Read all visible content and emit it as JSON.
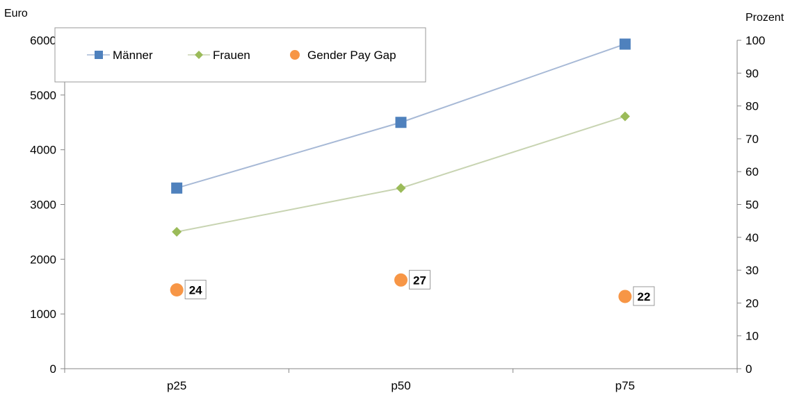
{
  "chart_data": {
    "type": "line",
    "categories": [
      "p25",
      "p50",
      "p75"
    ],
    "y_left": {
      "label": "Euro",
      "range": [
        0,
        6000
      ],
      "ticks": [
        0,
        1000,
        2000,
        3000,
        4000,
        5000,
        6000
      ]
    },
    "y_right": {
      "label": "Prozent",
      "range": [
        0,
        100
      ],
      "ticks": [
        0,
        10,
        20,
        30,
        40,
        50,
        60,
        70,
        80,
        90,
        100
      ]
    },
    "series": [
      {
        "name": "Männer",
        "axis": "left",
        "marker": "square",
        "color": "#4f81bd",
        "line_color": "#a7b9d6",
        "values": [
          3300,
          4500,
          5930
        ]
      },
      {
        "name": "Frauen",
        "axis": "left",
        "marker": "diamond",
        "color": "#9bbb59",
        "line_color": "#c8d4b2",
        "values": [
          2500,
          3300,
          4610
        ]
      },
      {
        "name": "Gender Pay Gap",
        "axis": "right",
        "marker": "circle",
        "color": "#f79646",
        "line": false,
        "values": [
          24,
          27,
          22
        ],
        "labels": [
          "24",
          "27",
          "22"
        ]
      }
    ],
    "legend": {
      "position": "top-left",
      "border": true
    },
    "grid": false
  }
}
